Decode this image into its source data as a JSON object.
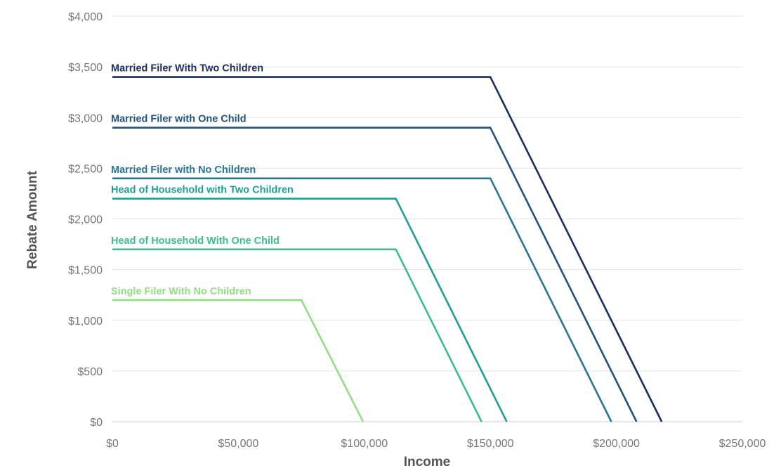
{
  "chart_data": {
    "type": "line",
    "xlabel": "Income",
    "ylabel": "Rebate Amount",
    "xlim": [
      0,
      250000
    ],
    "ylim": [
      0,
      4000
    ],
    "x_ticks": [
      "$0",
      "$50,000",
      "$100,000",
      "$150,000",
      "$200,000",
      "$250,000"
    ],
    "y_ticks": [
      "$0",
      "$500",
      "$1,000",
      "$1,500",
      "$2,000",
      "$2,500",
      "$3,000",
      "$3,500",
      "$4,000"
    ],
    "grid": true,
    "legend": "inline labels above each line",
    "series": [
      {
        "name": "Married Filer With Two Children",
        "color": "#1c2e5e",
        "points": [
          [
            0,
            3400
          ],
          [
            150000,
            3400
          ],
          [
            218000,
            0
          ]
        ]
      },
      {
        "name": "Married Filer with One Child",
        "color": "#24527f",
        "points": [
          [
            0,
            2900
          ],
          [
            150000,
            2900
          ],
          [
            208000,
            0
          ]
        ]
      },
      {
        "name": "Married Filer with No Children",
        "color": "#2a7591",
        "points": [
          [
            0,
            2400
          ],
          [
            150000,
            2400
          ],
          [
            198000,
            0
          ]
        ]
      },
      {
        "name": "Head of Household with Two Children",
        "color": "#1f9e95",
        "points": [
          [
            0,
            2200
          ],
          [
            112500,
            2200
          ],
          [
            156500,
            0
          ]
        ]
      },
      {
        "name": "Head of Household With One Child",
        "color": "#3dbb92",
        "points": [
          [
            0,
            1700
          ],
          [
            112500,
            1700
          ],
          [
            146500,
            0
          ]
        ]
      },
      {
        "name": "Single Filer With No Children",
        "color": "#92de84",
        "points": [
          [
            0,
            1200
          ],
          [
            75000,
            1200
          ],
          [
            99500,
            0
          ]
        ]
      }
    ]
  }
}
